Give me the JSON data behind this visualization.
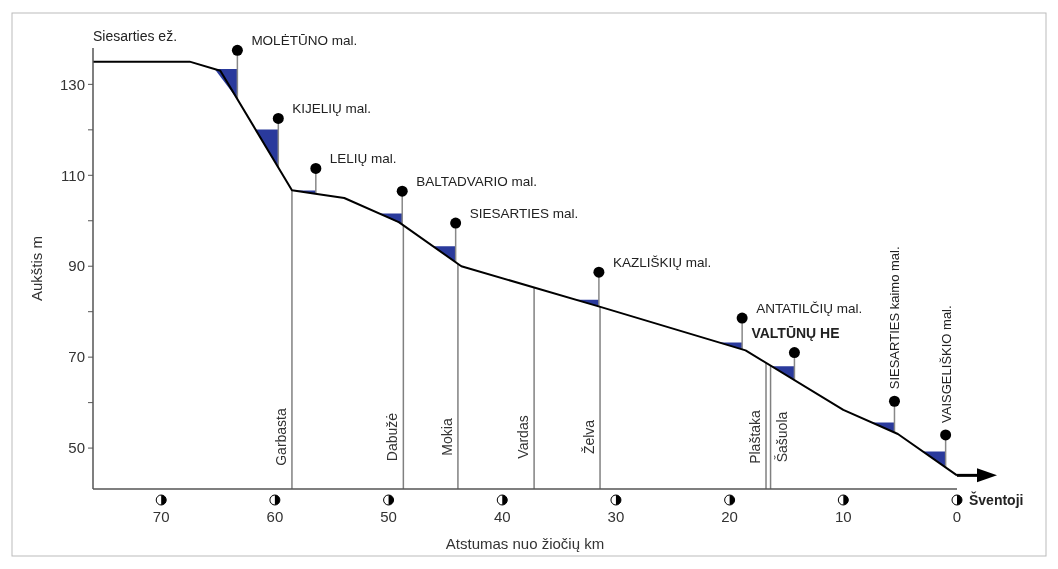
{
  "chart_data": {
    "type": "line",
    "xlabel": "Atstumas nuo žiočių km",
    "ylabel": "Aukštis m",
    "x": [
      76,
      67.5,
      64.8,
      58.5,
      56.6,
      53.9,
      49.1,
      43.6,
      31.3,
      18.6,
      10,
      5.2,
      0
    ],
    "series": [
      {
        "color": "#000000",
        "values": [
          135,
          135,
          133,
          106.7,
          106,
          105,
          99.7,
          90,
          81,
          71.5,
          58.4,
          53.1,
          44
        ]
      }
    ],
    "xlim": [
      76,
      0
    ],
    "xticks": [
      70,
      60,
      50,
      40,
      30,
      20,
      10,
      0
    ],
    "ylim": [
      41,
      138
    ],
    "yticks": [
      130,
      {
        "value": 120,
        "label": null
      },
      110,
      {
        "value": 100,
        "label": null
      },
      90,
      {
        "value": 80,
        "label": null
      },
      70,
      {
        "value": 60,
        "label": null
      },
      50
    ],
    "marker": "none",
    "line_style": "solid",
    "grid": false,
    "ref_lines": [
      {
        "axis": "x",
        "value": 58.5,
        "label": "Garbasta",
        "color": "#808080"
      },
      {
        "axis": "x",
        "value": 48.7,
        "label": "Dabužė",
        "color": "#808080"
      },
      {
        "axis": "x",
        "value": 43.9,
        "label": "Mokia",
        "color": "#808080"
      },
      {
        "axis": "x",
        "value": 37.2,
        "label": "Vardas",
        "color": "#808080"
      },
      {
        "axis": "x",
        "value": 31.4,
        "label": "Želva",
        "color": "#808080"
      },
      {
        "axis": "x",
        "value": 16.8,
        "label": "Plaštaka",
        "color": "#808080"
      },
      {
        "axis": "x",
        "value": 16.4,
        "label": "Šašuola",
        "color": "#808080"
      }
    ],
    "annotations": [
      "Siesarties ež.",
      "Šventoji",
      {
        "text": "MOLĖTŪNO mal.",
        "x": 63.3,
        "y": 137.5
      },
      {
        "text": "KIJELIŲ mal.",
        "x": 59.7,
        "y": 122.5
      },
      {
        "text": "LELIŲ mal.",
        "x": 56.4,
        "y": 111.5
      },
      {
        "text": "BALTADVARIO mal.",
        "x": 48.8,
        "y": 106.5
      },
      {
        "text": "SIESARTIES mal.",
        "x": 44.1,
        "y": 99.5
      },
      {
        "text": "KAZLIŠKIŲ mal.",
        "x": 31.5,
        "y": 88.7
      },
      {
        "text": "ANTATILČIŲ mal.",
        "x": 18.9,
        "y": 78.6
      },
      {
        "text": "VALTŪNŲ HE",
        "x": 14.3,
        "y": 71
      },
      {
        "text": "SIESARTIES kaimo mal.",
        "x": 5.5,
        "y": 60.3
      },
      {
        "text": "VAISGELIŠKIO mal.",
        "x": 1,
        "y": 52.9
      }
    ]
  }
}
